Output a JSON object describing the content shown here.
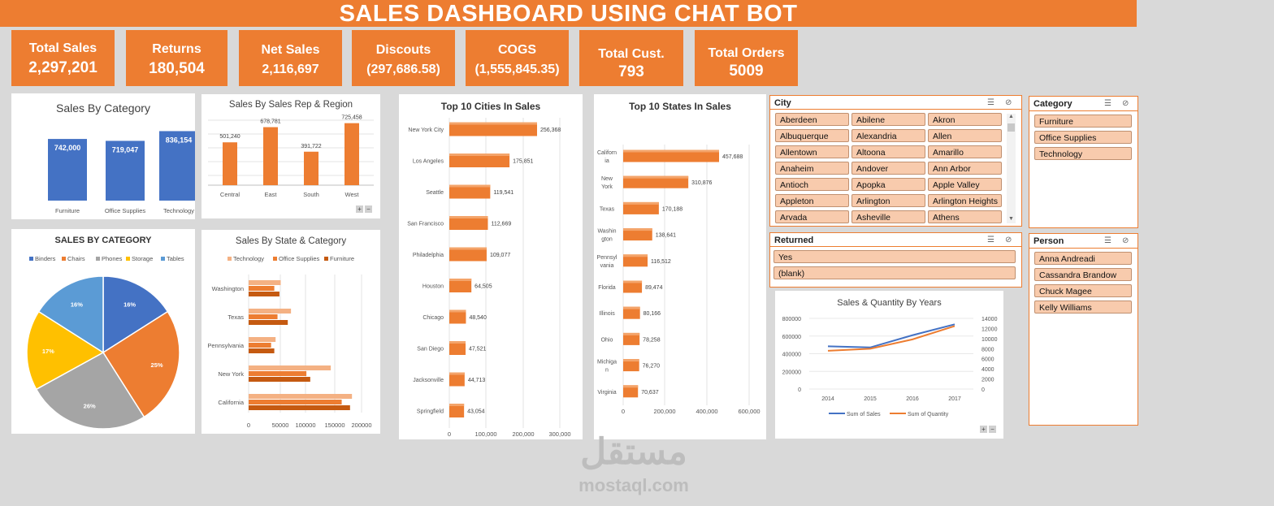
{
  "title": "SALES DASHBOARD USING CHAT BOT",
  "kpis": [
    {
      "label": "Total Sales",
      "value": "2,297,201"
    },
    {
      "label": "Returns",
      "value": "180,504"
    },
    {
      "label": "Net Sales",
      "value": "2,116,697"
    },
    {
      "label": "Discouts",
      "value": "(297,686.58)"
    },
    {
      "label": "COGS",
      "value": "(1,555,845.35)"
    },
    {
      "label": "Total Cust.",
      "value": "793"
    },
    {
      "label": "Total Orders",
      "value": "5009"
    }
  ],
  "colors": {
    "orange": "#ed7d31",
    "blue": "#4472c4",
    "gray": "#a5a5a5",
    "yellow": "#ffc000",
    "lightblue": "#5b9bd5",
    "peach": "#f4b183",
    "darkorange": "#c55a11"
  },
  "chart_data": [
    {
      "id": "sales_by_category",
      "type": "bar",
      "title": "Sales By Category",
      "categories": [
        "Furniture",
        "Office Supplies",
        "Technology"
      ],
      "values": [
        742000,
        719047,
        836154
      ],
      "value_labels": [
        "742,000",
        "719,047",
        "836,154"
      ],
      "color": "#4472c4"
    },
    {
      "id": "sales_by_rep_region",
      "type": "bar",
      "title": "Sales By Sales Rep & Region",
      "categories": [
        "Central",
        "East",
        "South",
        "West"
      ],
      "values": [
        501240,
        678781,
        391722,
        725458
      ],
      "value_labels": [
        "501,240",
        "678,781",
        "391,722",
        "725,458"
      ],
      "color": "#ed7d31"
    },
    {
      "id": "top10_cities",
      "type": "bar",
      "orientation": "horizontal",
      "title": "Top 10 Cities In Sales",
      "categories": [
        "New York City",
        "Los Angeles",
        "Seattle",
        "San Francisco",
        "Philadelphia",
        "Houston",
        "Chicago",
        "San Diego",
        "Jacksonville",
        "Springfield"
      ],
      "values": [
        256368,
        175851,
        119541,
        112669,
        109077,
        64505,
        48540,
        47521,
        44713,
        43054
      ],
      "value_labels": [
        "256,368",
        "175,851",
        "119,541",
        "112,669",
        "109,077",
        "64,505",
        "48,540",
        "47,521",
        "44,713",
        "43,054"
      ],
      "xticks": [
        "0",
        "100,000",
        "200,000",
        "300,000"
      ],
      "xlim": [
        0,
        300000
      ]
    },
    {
      "id": "top10_states",
      "type": "bar",
      "orientation": "horizontal",
      "title": "Top 10 States In Sales",
      "categories": [
        [
          "Californ",
          "ia"
        ],
        [
          "New",
          "York"
        ],
        [
          "Texas"
        ],
        [
          "Washin",
          "gton"
        ],
        [
          "Pennsyl",
          "vania"
        ],
        [
          "Florida"
        ],
        [
          "Illinois"
        ],
        [
          "Ohio"
        ],
        [
          "Michiga",
          "n"
        ],
        [
          "Virginia"
        ]
      ],
      "values": [
        457688,
        310876,
        170188,
        138641,
        116512,
        89474,
        80166,
        78258,
        76270,
        70637
      ],
      "value_labels": [
        "457,688",
        "310,876",
        "170,188",
        "138,641",
        "116,512",
        "89,474",
        "80,166",
        "78,258",
        "76,270",
        "70,637"
      ],
      "xticks": [
        "0",
        "200,000",
        "400,000",
        "600,000"
      ],
      "xlim": [
        0,
        600000
      ]
    },
    {
      "id": "sales_by_category_pie",
      "type": "pie",
      "title": "SALES BY CATEGORY",
      "labels": [
        "Binders",
        "Chairs",
        "Phones",
        "Storage",
        "Tables"
      ],
      "values": [
        16,
        25,
        26,
        17,
        16
      ],
      "value_labels": [
        "16%",
        "25%",
        "26%",
        "17%",
        "16%"
      ],
      "colors": [
        "#4472c4",
        "#ed7d31",
        "#a5a5a5",
        "#ffc000",
        "#5b9bd5"
      ]
    },
    {
      "id": "sales_by_state_category",
      "type": "bar",
      "orientation": "horizontal",
      "title": "Sales By State & Category",
      "categories": [
        "Washington",
        "Texas",
        "Pennsylvania",
        "New York",
        "California"
      ],
      "series": [
        {
          "name": "Technology",
          "values": [
            50000,
            66000,
            42000,
            128000,
            161000
          ],
          "color": "#f4b183"
        },
        {
          "name": "Office Supplies",
          "values": [
            40000,
            45000,
            35000,
            90000,
            145000
          ],
          "color": "#ed7d31"
        },
        {
          "name": "Furniture",
          "values": [
            48000,
            61000,
            40000,
            96000,
            158000
          ],
          "color": "#c55a11"
        }
      ],
      "xticks": [
        "0",
        "50000",
        "100000",
        "150000",
        "200000"
      ],
      "xlim": [
        0,
        200000
      ]
    },
    {
      "id": "sales_quantity_years",
      "type": "line",
      "title": "Sales & Quantity By Years",
      "x": [
        "2014",
        "2015",
        "2016",
        "2017"
      ],
      "series": [
        {
          "name": "Sum of Sales",
          "values": [
            484000,
            471000,
            609000,
            733000
          ],
          "axis": "left",
          "color": "#4472c4"
        },
        {
          "name": "Sum of Quantity",
          "values": [
            7580,
            7980,
            9840,
            12480
          ],
          "axis": "right",
          "color": "#ed7d31"
        }
      ],
      "yticks_left": [
        "800000",
        "600000",
        "400000",
        "200000",
        "0"
      ],
      "yticks_right": [
        "14000",
        "12000",
        "10000",
        "8000",
        "6000",
        "4000",
        "2000",
        "0"
      ],
      "ylim_left": [
        0,
        800000
      ],
      "ylim_right": [
        0,
        14000
      ]
    }
  ],
  "slicers": {
    "city": {
      "title": "City",
      "items": [
        "Aberdeen",
        "Abilene",
        "Akron",
        "Albuquerque",
        "Alexandria",
        "Allen",
        "Allentown",
        "Altoona",
        "Amarillo",
        "Anaheim",
        "Andover",
        "Ann Arbor",
        "Antioch",
        "Apopka",
        "Apple Valley",
        "Appleton",
        "Arlington",
        "Arlington Heights",
        "Arvada",
        "Asheville",
        "Athens"
      ]
    },
    "category": {
      "title": "Category",
      "items": [
        "Furniture",
        "Office Supplies",
        "Technology"
      ]
    },
    "returned": {
      "title": "Returned",
      "items": [
        "Yes",
        "(blank)"
      ]
    },
    "person": {
      "title": "Person",
      "items": [
        "Anna Andreadi",
        "Cassandra Brandow",
        "Chuck Magee",
        "Kelly Williams"
      ]
    }
  },
  "watermark": {
    "arabic": "مستقل",
    "latin": "mostaql.com"
  }
}
